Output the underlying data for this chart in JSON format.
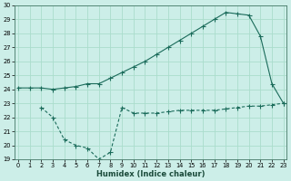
{
  "xlabel": "Humidex (Indice chaleur)",
  "background_color": "#cceee8",
  "grid_color": "#aaddcc",
  "line_color": "#1a6b5a",
  "line1_x": [
    0,
    1,
    2,
    3,
    4,
    5,
    6,
    7,
    8,
    9,
    10,
    11,
    12,
    13,
    14,
    15,
    16,
    17,
    18,
    19,
    20,
    21,
    22,
    23
  ],
  "line1_y": [
    24.1,
    24.1,
    24.1,
    24.0,
    24.1,
    24.2,
    24.4,
    24.4,
    24.8,
    25.2,
    25.6,
    26.0,
    26.5,
    27.0,
    27.5,
    28.0,
    28.5,
    29.0,
    29.5,
    29.4,
    29.3,
    27.8,
    24.4,
    23.0
  ],
  "line2_x": [
    2,
    3,
    4,
    5,
    6,
    7,
    8,
    9,
    10,
    11,
    12,
    13,
    14,
    15,
    16,
    17,
    18,
    19,
    20,
    21,
    22,
    23
  ],
  "line2_y": [
    22.7,
    22.0,
    20.4,
    20.0,
    19.8,
    19.0,
    19.5,
    22.7,
    22.3,
    22.3,
    22.3,
    22.4,
    22.5,
    22.5,
    22.5,
    22.5,
    22.6,
    22.7,
    22.8,
    22.8,
    22.9,
    23.0
  ],
  "ylim": [
    19,
    30
  ],
  "xlim": [
    -0.3,
    23.3
  ],
  "yticks": [
    19,
    20,
    21,
    22,
    23,
    24,
    25,
    26,
    27,
    28,
    29,
    30
  ],
  "xticks": [
    0,
    1,
    2,
    3,
    4,
    5,
    6,
    7,
    8,
    9,
    10,
    11,
    12,
    13,
    14,
    15,
    16,
    17,
    18,
    19,
    20,
    21,
    22,
    23
  ],
  "xlabel_fontsize": 6.0,
  "tick_fontsize": 4.8,
  "marker_size": 2.0,
  "linewidth": 0.8
}
